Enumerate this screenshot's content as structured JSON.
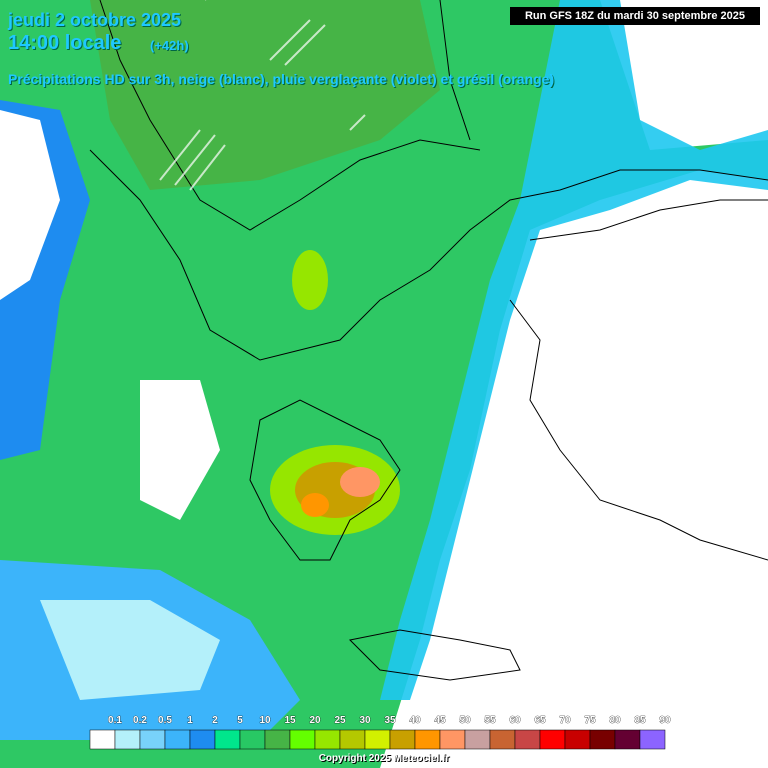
{
  "header": {
    "date": "jeudi 2 octobre 2025",
    "time": "14:00 locale",
    "lead": "(+42h)",
    "run": "Run GFS 18Z du mardi 30 septembre 2025",
    "subtitle": "Précipitations HD sur 3h, neige (blanc), pluie verglaçante (violet) et grésil (orange)"
  },
  "legend": {
    "labels": [
      "0.1",
      "0.2",
      "0.5",
      "1",
      "2",
      "5",
      "10",
      "15",
      "20",
      "25",
      "30",
      "35",
      "40",
      "45",
      "50",
      "55",
      "60",
      "65",
      "70",
      "75",
      "80",
      "85",
      "90"
    ],
    "colors": [
      "#ffffff",
      "#b4f0fa",
      "#78d2fa",
      "#3cb4fa",
      "#1e8cf0",
      "#00e68c",
      "#28c864",
      "#46b446",
      "#64ff00",
      "#96e600",
      "#b4c800",
      "#d2f000",
      "#c8a000",
      "#ff9600",
      "#ff9664",
      "#c8a0a0",
      "#c86432",
      "#c84646",
      "#ff0000",
      "#c80000",
      "#780000",
      "#640032",
      "#8c64ff"
    ]
  },
  "footer": {
    "copyright": "Copyright 2025 Meteociel.fr"
  }
}
